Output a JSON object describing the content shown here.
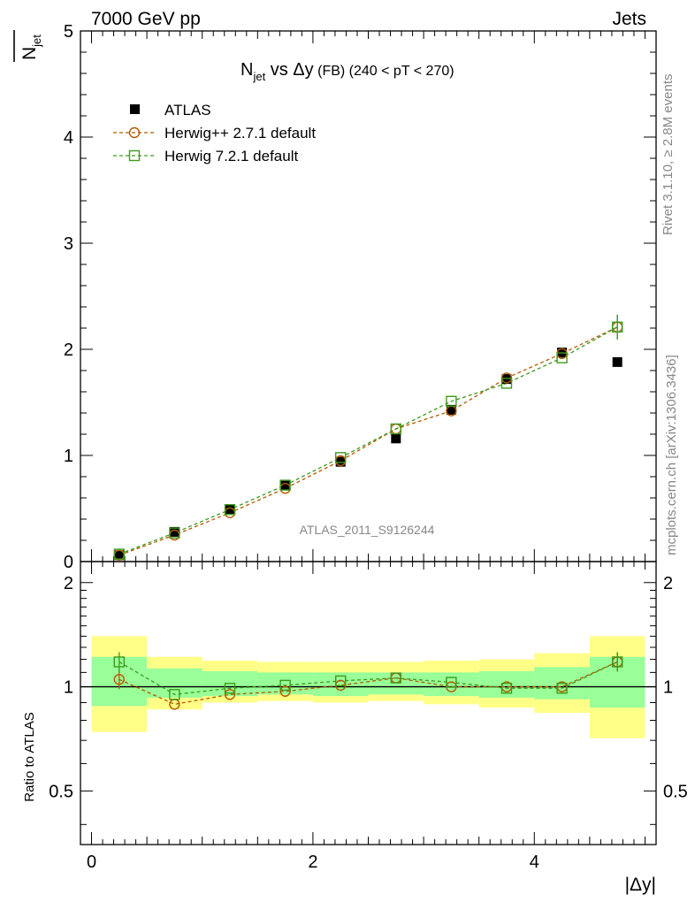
{
  "header": {
    "left": "7000 GeV pp",
    "right": "Jets"
  },
  "side_labels": {
    "rivet": "Rivet 3.1.10, ≥ 2.8M events",
    "mcplots": "mcplots.cern.ch [arXiv:1306.3436]"
  },
  "watermark": "ATLAS_2011_S9126244",
  "chart_data": [
    {
      "type": "scatter",
      "panel": "main",
      "title_main": "N",
      "title_sub": "jet",
      "title_mid": " vs Δy",
      "title_small": " (FB)",
      "title_tail": " (240 < pT < 270)",
      "ylabel_main": "N",
      "ylabel_sub": "jet",
      "ylim": [
        0,
        5
      ],
      "xlim": [
        -0.1,
        5.1
      ],
      "y_ticks": [
        "0",
        "1",
        "2",
        "3",
        "4",
        "5"
      ],
      "y_tick_values": [
        0,
        1,
        2,
        3,
        4,
        5
      ],
      "x": [
        0.25,
        0.75,
        1.25,
        1.75,
        2.25,
        2.75,
        3.25,
        3.75,
        4.25,
        4.75
      ],
      "legend_position": "top-left",
      "series": [
        {
          "name": "ATLAS",
          "color": "#000000",
          "marker": "filled-square",
          "line": "none",
          "values": [
            0.06,
            0.28,
            0.49,
            0.72,
            0.94,
            1.16,
            1.43,
            1.72,
            1.97,
            1.88
          ]
        },
        {
          "name": "Herwig++ 2.7.1 default",
          "color": "#b35a00",
          "marker": "open-circle",
          "line": "dashed",
          "values": [
            0.06,
            0.25,
            0.46,
            0.69,
            0.95,
            1.25,
            1.42,
            1.73,
            1.96,
            2.21
          ]
        },
        {
          "name": "Herwig 7.2.1 default",
          "color": "#3e9a1c",
          "marker": "open-square",
          "line": "dashed",
          "values": [
            0.07,
            0.27,
            0.49,
            0.72,
            0.98,
            1.25,
            1.51,
            1.68,
            1.92,
            2.21
          ]
        }
      ]
    },
    {
      "type": "scatter",
      "panel": "ratio",
      "ylabel": "Ratio to ATLAS",
      "xlabel": "|Δy|",
      "ylim": [
        0.35,
        2.3
      ],
      "xlim": [
        -0.1,
        5.1
      ],
      "y_ticks": [
        "0.5",
        "1",
        "2"
      ],
      "y_tick_values": [
        0.5,
        1,
        2
      ],
      "x_ticks": [
        "0",
        "2",
        "4"
      ],
      "x_tick_values": [
        0,
        2,
        4
      ],
      "x": [
        0.25,
        0.75,
        1.25,
        1.75,
        2.25,
        2.75,
        3.25,
        3.75,
        4.25,
        4.75
      ],
      "x_edges": [
        0,
        0.5,
        1.0,
        1.5,
        2.0,
        2.5,
        3.0,
        3.5,
        4.0,
        4.5,
        5.0
      ],
      "band_yellow": [
        [
          0.74,
          1.4
        ],
        [
          0.86,
          1.22
        ],
        [
          0.9,
          1.19
        ],
        [
          0.91,
          1.18
        ],
        [
          0.9,
          1.18
        ],
        [
          0.91,
          1.18
        ],
        [
          0.89,
          1.19
        ],
        [
          0.87,
          1.2
        ],
        [
          0.84,
          1.25
        ],
        [
          0.71,
          1.4
        ]
      ],
      "band_green": [
        [
          0.88,
          1.22
        ],
        [
          0.93,
          1.13
        ],
        [
          0.94,
          1.11
        ],
        [
          0.95,
          1.1
        ],
        [
          0.94,
          1.1
        ],
        [
          0.95,
          1.1
        ],
        [
          0.94,
          1.1
        ],
        [
          0.93,
          1.11
        ],
        [
          0.92,
          1.14
        ],
        [
          0.87,
          1.22
        ]
      ],
      "series": [
        {
          "name": "Herwig++ 2.7.1 default",
          "color": "#b35a00",
          "marker": "open-circle",
          "values": [
            1.05,
            0.89,
            0.95,
            0.97,
            1.01,
            1.06,
            1.0,
            1.0,
            1.0,
            1.18
          ]
        },
        {
          "name": "Herwig 7.2.1 default",
          "color": "#3e9a1c",
          "marker": "open-square",
          "values": [
            1.18,
            0.95,
            0.99,
            1.01,
            1.04,
            1.06,
            1.03,
            0.99,
            0.99,
            1.18
          ]
        }
      ]
    }
  ]
}
